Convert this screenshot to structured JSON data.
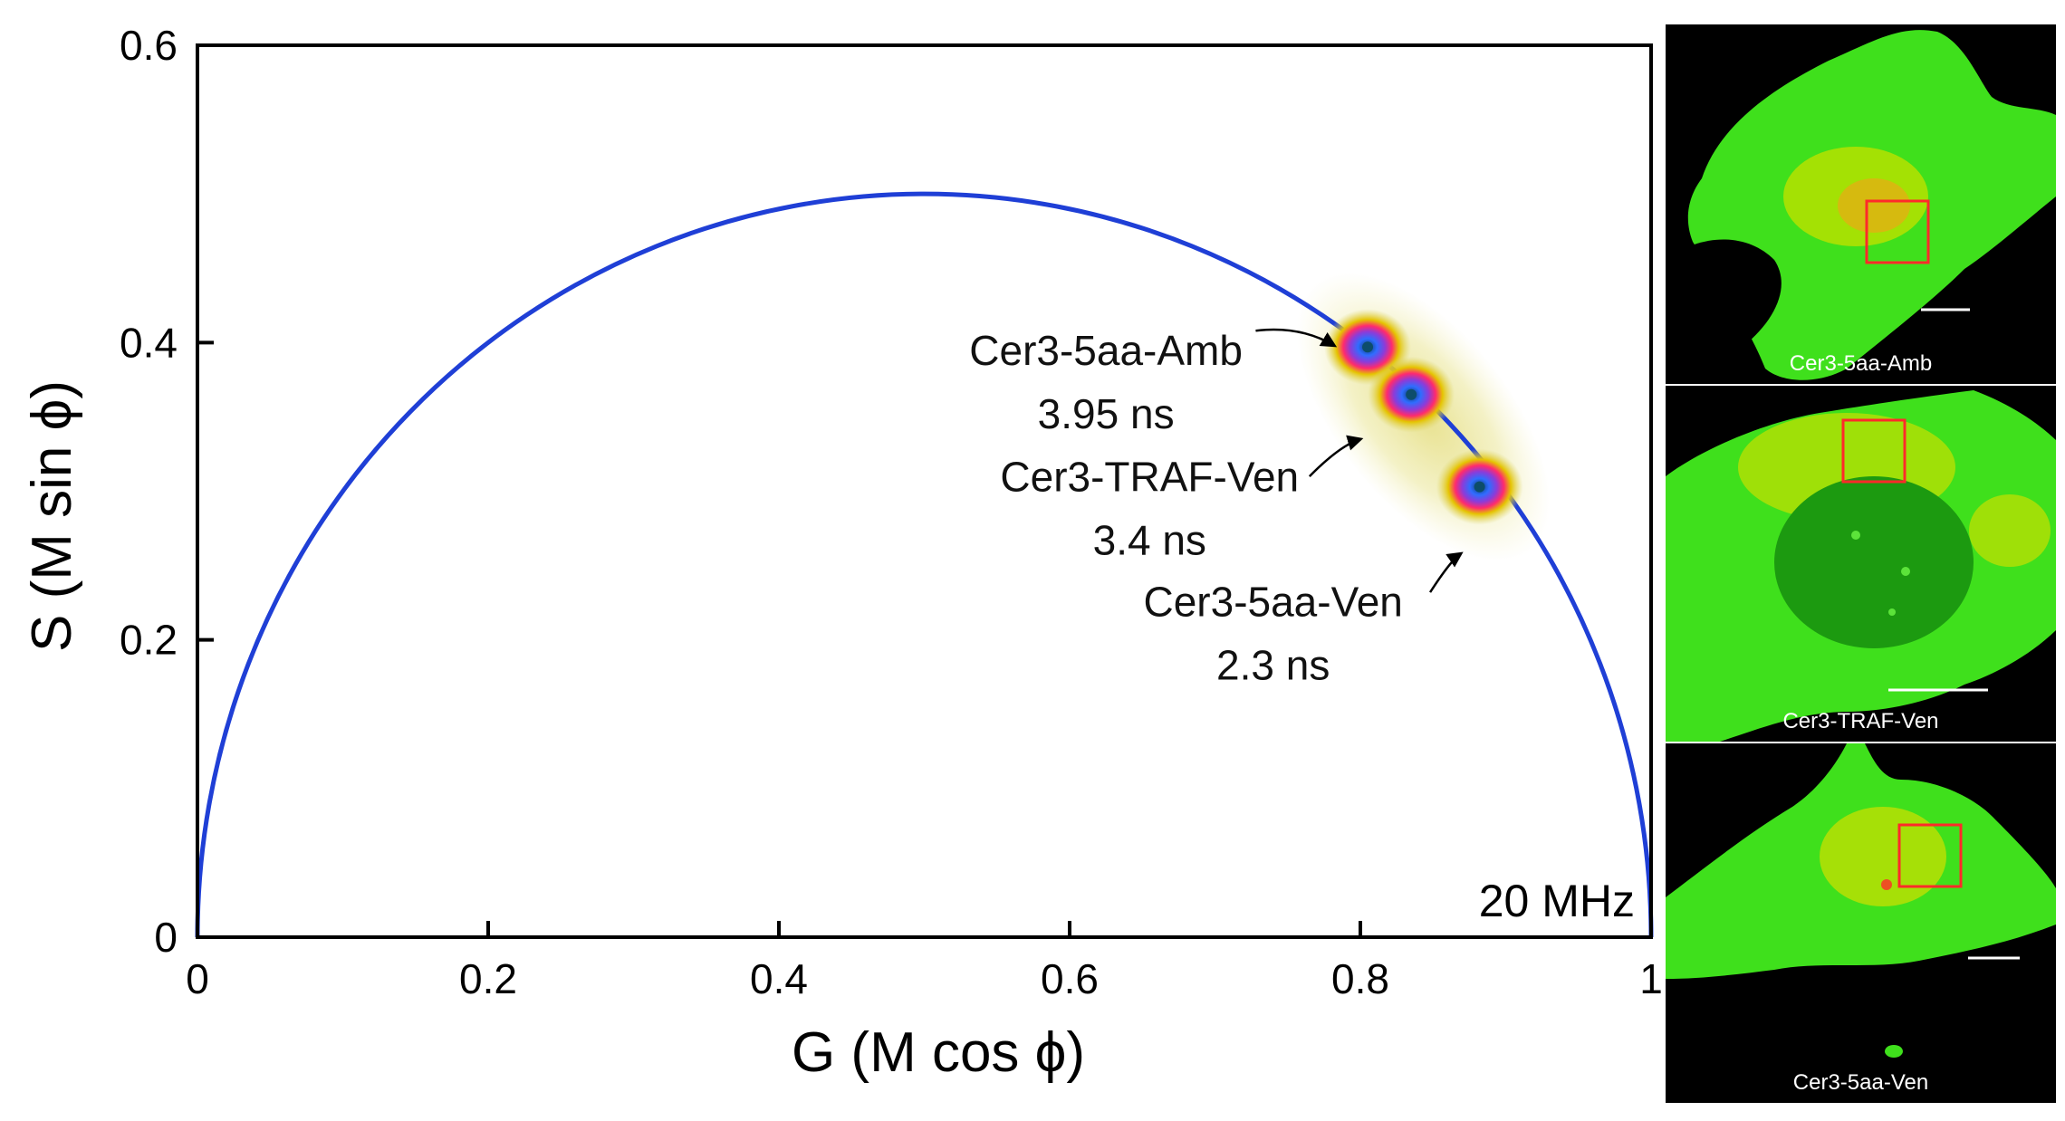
{
  "chart_data": {
    "type": "scatter",
    "subtype": "phasor-plot",
    "title": "",
    "xlabel": "G (M cos ϕ)",
    "ylabel": "S (M sin ϕ)",
    "xlim": [
      0,
      1
    ],
    "ylim": [
      0,
      0.6
    ],
    "x_ticks": [
      0,
      0.2,
      0.4,
      0.6,
      0.8,
      1
    ],
    "x_tick_labels": [
      "0",
      "0.2",
      "0.4",
      "0.6",
      "0.8",
      "1"
    ],
    "y_ticks": [
      0,
      0.2,
      0.4,
      0.6
    ],
    "y_tick_labels": [
      "0",
      "0.2",
      "0.4",
      "0.6"
    ],
    "frequency_label": "20 MHz",
    "curve": {
      "name": "universal semicircle",
      "center": [
        0.5,
        0
      ],
      "radius": 0.5,
      "color": "#1f3fd6"
    },
    "series": [
      {
        "name": "Cer3-5aa-Amb",
        "lifetime": "3.95 ns",
        "g": 0.805,
        "s": 0.397
      },
      {
        "name": "Cer3-TRAF-Ven",
        "lifetime": "3.4 ns",
        "g": 0.835,
        "s": 0.365
      },
      {
        "name": "Cer3-5aa-Ven",
        "lifetime": "2.3 ns",
        "g": 0.882,
        "s": 0.303
      }
    ],
    "annotations": [
      {
        "name": "Cer3-5aa-Amb",
        "lifetime": "3.95 ns",
        "text_g": 0.625,
        "text_s": 0.385,
        "arrow_from": [
          0.728,
          0.408
        ],
        "arrow_to": [
          0.782,
          0.398
        ]
      },
      {
        "name": "Cer3-TRAF-Ven",
        "lifetime": "3.4 ns",
        "text_g": 0.655,
        "text_s": 0.3,
        "arrow_from": [
          0.765,
          0.31
        ],
        "arrow_to": [
          0.8,
          0.335
        ]
      },
      {
        "name": "Cer3-5aa-Ven",
        "lifetime": "2.3 ns",
        "text_g": 0.74,
        "text_s": 0.216,
        "arrow_from": [
          0.848,
          0.232
        ],
        "arrow_to": [
          0.869,
          0.258
        ]
      }
    ]
  },
  "micrographs": [
    {
      "label": "Cer3-5aa-Amb"
    },
    {
      "label": "Cer3-TRAF-Ven"
    },
    {
      "label": "Cer3-5aa-Ven"
    }
  ],
  "colors": {
    "semicircle": "#1f3fd6",
    "axes": "#000000",
    "roi_box": "#ff2a2a",
    "cell_green": "#3fe01c",
    "cell_yellow": "#c9e000"
  }
}
